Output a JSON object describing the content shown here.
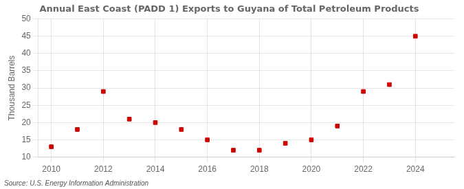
{
  "chart_data": {
    "type": "scatter",
    "title": "Annual East Coast (PADD 1) Exports to Guyana of Total Petroleum Products",
    "ylabel": "Thousand Barrels",
    "annotation": "Source: U.S. Energy Information Administration",
    "x": [
      2010,
      2011,
      2012,
      2013,
      2014,
      2015,
      2016,
      2017,
      2018,
      2019,
      2020,
      2021,
      2022,
      2023,
      2024
    ],
    "values": [
      13,
      18,
      29,
      21,
      20,
      18,
      15,
      12,
      12,
      14,
      15,
      19,
      29,
      31,
      45
    ],
    "color": "#cc0000",
    "marker": "square",
    "xlim": [
      2009.5,
      2025.5
    ],
    "xticks": [
      2010,
      2012,
      2014,
      2016,
      2018,
      2020,
      2022,
      2024
    ],
    "ylim": [
      10,
      50
    ],
    "yticks": [
      10,
      15,
      20,
      25,
      30,
      35,
      40,
      45,
      50
    ],
    "grid": true
  }
}
